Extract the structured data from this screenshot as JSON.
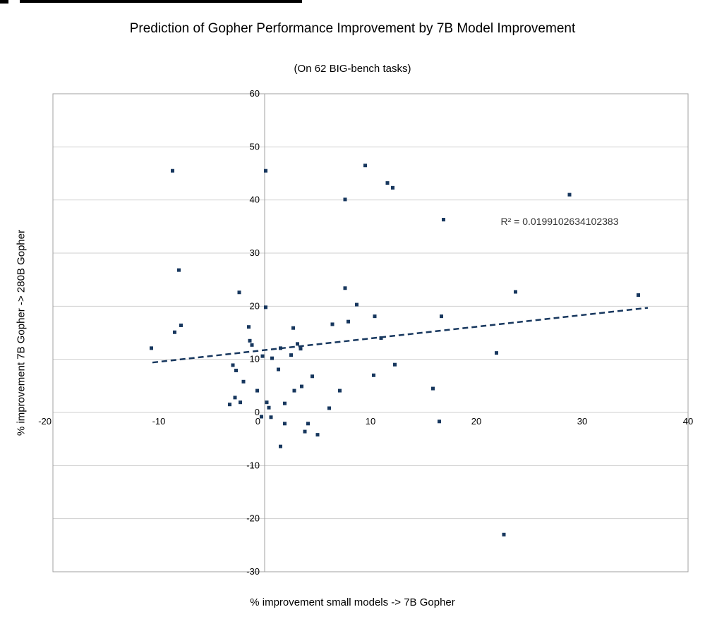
{
  "chart_data": {
    "type": "scatter",
    "title": "Prediction of Gopher Performance Improvement by 7B Model Improvement",
    "subtitle": "(On 62 BIG-bench tasks)",
    "xlabel": "% improvement small models -> 7B Gopher",
    "ylabel": "% improvement 7B Gopher -> 280B Gopher",
    "xlim": [
      -20,
      40
    ],
    "ylim": [
      -30,
      60
    ],
    "x_ticks": [
      -20,
      -10,
      0,
      10,
      20,
      30,
      40
    ],
    "y_ticks": [
      60,
      50,
      40,
      30,
      20,
      10,
      0,
      -10,
      -20,
      -30
    ],
    "grid": "horizontal",
    "legend": "none",
    "colors": {
      "marker": "#17375E",
      "trendline": "#17375E",
      "gridline": "#cfcfcf",
      "border": "#a0a0a0",
      "text": "#000000",
      "annotation": "#333333"
    },
    "points": [
      [
        -8.7,
        45.5
      ],
      [
        0.1,
        45.5
      ],
      [
        9.5,
        46.5
      ],
      [
        11.6,
        43.2
      ],
      [
        12.1,
        42.3
      ],
      [
        7.6,
        40.1
      ],
      [
        28.8,
        41.0
      ],
      [
        16.9,
        36.3
      ],
      [
        -8.1,
        26.8
      ],
      [
        -2.4,
        22.6
      ],
      [
        7.6,
        23.4
      ],
      [
        23.7,
        22.7
      ],
      [
        35.3,
        22.1
      ],
      [
        8.7,
        20.3
      ],
      [
        0.1,
        19.8
      ],
      [
        10.4,
        18.1
      ],
      [
        16.7,
        18.1
      ],
      [
        7.9,
        17.1
      ],
      [
        6.4,
        16.6
      ],
      [
        2.7,
        15.9
      ],
      [
        -1.5,
        16.1
      ],
      [
        -7.9,
        16.4
      ],
      [
        -8.5,
        15.1
      ],
      [
        11.0,
        14.0
      ],
      [
        -1.4,
        13.5
      ],
      [
        -1.2,
        12.7
      ],
      [
        3.1,
        12.9
      ],
      [
        3.4,
        12.0
      ],
      [
        1.5,
        12.1
      ],
      [
        -10.7,
        12.1
      ],
      [
        21.9,
        11.2
      ],
      [
        2.5,
        10.8
      ],
      [
        0.7,
        10.2
      ],
      [
        -0.2,
        10.6
      ],
      [
        -3.0,
        8.9
      ],
      [
        -2.7,
        7.9
      ],
      [
        12.3,
        9.0
      ],
      [
        1.3,
        8.1
      ],
      [
        10.3,
        7.0
      ],
      [
        -2.0,
        5.8
      ],
      [
        4.5,
        6.8
      ],
      [
        3.5,
        4.9
      ],
      [
        2.8,
        4.1
      ],
      [
        7.1,
        4.1
      ],
      [
        15.9,
        4.5
      ],
      [
        -0.7,
        4.1
      ],
      [
        -2.8,
        2.8
      ],
      [
        -2.3,
        1.9
      ],
      [
        -3.3,
        1.5
      ],
      [
        0.2,
        1.9
      ],
      [
        0.4,
        0.9
      ],
      [
        1.9,
        1.7
      ],
      [
        6.1,
        0.8
      ],
      [
        -0.3,
        -0.8
      ],
      [
        0.6,
        -0.9
      ],
      [
        1.9,
        -2.1
      ],
      [
        4.1,
        -2.1
      ],
      [
        3.8,
        -3.6
      ],
      [
        5.0,
        -4.2
      ],
      [
        16.5,
        -1.7
      ],
      [
        1.5,
        -6.4
      ],
      [
        22.6,
        -23.0
      ]
    ],
    "trendline": {
      "style": "dashed",
      "x1": -10.6,
      "y1": 9.4,
      "x2": 36.2,
      "y2": 19.7,
      "r_squared": 0.0199102634102383
    },
    "annotation": {
      "text": "R² = 0.0199102634102383",
      "x": 22.3,
      "y": 35.3
    }
  }
}
